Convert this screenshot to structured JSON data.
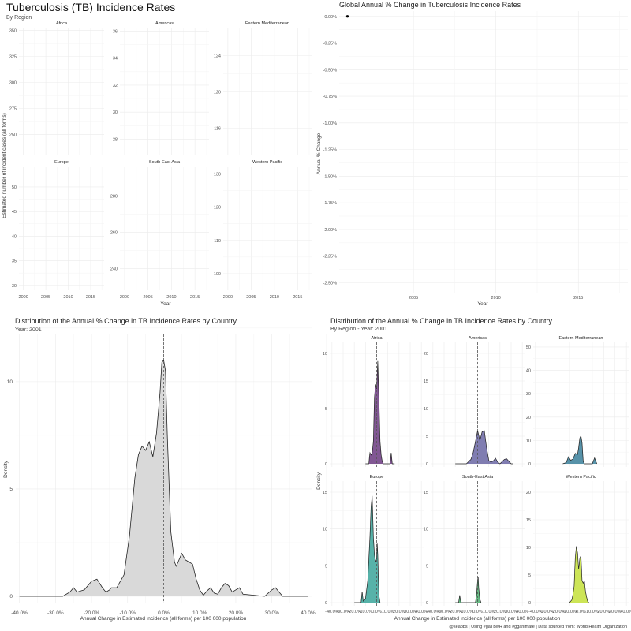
{
  "panels": {
    "top_left": {
      "title": "Tuberculosis (TB) Incidence Rates",
      "subtitle": "By Region",
      "ylabel": "Estimated number of incident cases (all forms)",
      "xlabel": "Year"
    },
    "top_right": {
      "title": "Global Annual % Change in Tuberculosis Incidence Rates",
      "ylabel": "Annual % Change",
      "xlabel": "Year"
    },
    "bottom_left": {
      "title": "Distribution of the Annual % Change in TB Incidence Rates by Country",
      "subtitle": "Year: 2001",
      "ylabel": "Density",
      "xlabel": "Annual Change in Estimated incidence (all forms) per 100 000 population"
    },
    "bottom_right": {
      "title": "Distribution of the Annual % Change in TB Incidence Rates by Country",
      "subtitle": "By Region - Year: 2001",
      "ylabel": "Density",
      "xlabel": "Annual Change in Estimated incidence (all forms) per 100 000 population",
      "caption": "@seabbs | Using #gaTBwR and #gganimate | Data sourced from: World Health Organization"
    }
  },
  "chart_data": [
    {
      "type": "scatter",
      "facets": [
        {
          "name": "Africa",
          "y_ticks": [
            250,
            275,
            300,
            325,
            350
          ],
          "ylim": [
            230,
            352
          ],
          "points": []
        },
        {
          "name": "Americas",
          "y_ticks": [
            28,
            30,
            32,
            34,
            36
          ],
          "ylim": [
            26.8,
            36.2
          ],
          "points": []
        },
        {
          "name": "Eastern Mediterranean",
          "y_ticks": [
            116,
            120,
            124
          ],
          "ylim": [
            113,
            127
          ],
          "points": []
        },
        {
          "name": "Europe",
          "y_ticks": [
            30,
            35,
            40,
            45,
            50
          ],
          "ylim": [
            29,
            54
          ],
          "points": []
        },
        {
          "name": "South-East Asia",
          "y_ticks": [
            240,
            260,
            280
          ],
          "ylim": [
            228,
            296
          ],
          "points": []
        },
        {
          "name": "Western Pacific",
          "y_ticks": [
            100,
            110,
            120,
            130
          ],
          "ylim": [
            95,
            132
          ],
          "points": []
        }
      ],
      "x_ticks": [
        2000,
        2005,
        2010,
        2015
      ],
      "xlim": [
        1999,
        2018
      ]
    },
    {
      "type": "scatter",
      "x": [
        2001
      ],
      "y": [
        0.0
      ],
      "x_ticks": [
        2005,
        2010,
        2015
      ],
      "xlim": [
        2000.5,
        2018
      ],
      "y_ticks": [
        0,
        -0.25,
        -0.5,
        -0.75,
        -1.0,
        -1.25,
        -1.5,
        -1.75,
        -2.0,
        -2.25,
        -2.5
      ],
      "y_tick_labels": [
        "0.00%",
        "-0.25%",
        "-0.50%",
        "-0.75%",
        "-1.00%",
        "-1.25%",
        "-1.50%",
        "-1.75%",
        "-2.00%",
        "-2.25%",
        "-2.50%"
      ],
      "ylim": [
        -2.6,
        0.05
      ]
    },
    {
      "type": "area",
      "fill": "#d9d9d9",
      "x_ticks": [
        -40,
        -30,
        -20,
        -10,
        0,
        10,
        20,
        30,
        40
      ],
      "x_tick_labels": [
        "-40.0%",
        "-30.0%",
        "-20.0%",
        "-10.0%",
        "0.0%",
        "10.0%",
        "20.0%",
        "30.0%",
        "40.0%"
      ],
      "xlim": [
        -41,
        41
      ],
      "y_ticks": [
        0,
        5,
        10
      ],
      "ylim": [
        0,
        12.2
      ],
      "x": [
        -40,
        -28,
        -26,
        -25,
        -24,
        -22,
        -20,
        -18.5,
        -17,
        -16,
        -15,
        -14.5,
        -13,
        -11,
        -9.5,
        -8,
        -7,
        -6,
        -5,
        -4,
        -3,
        -2,
        -1,
        -0.5,
        0,
        0.5,
        1,
        2,
        3,
        3.5,
        4,
        5,
        6,
        7,
        8,
        9,
        10,
        11,
        12,
        13,
        14,
        15,
        16,
        17,
        18,
        19,
        20,
        21,
        22,
        28,
        30,
        31,
        32,
        33,
        35,
        40
      ],
      "y": [
        0,
        0,
        0.2,
        0.4,
        0.2,
        0.3,
        0.7,
        0.8,
        0.4,
        0.2,
        0.3,
        0.4,
        0.4,
        1.0,
        2.8,
        5.5,
        6.6,
        7.0,
        6.8,
        7.2,
        6.5,
        7.6,
        9.5,
        10.9,
        11.0,
        10.5,
        7.5,
        3.0,
        1.6,
        1.4,
        1.6,
        2.0,
        1.7,
        1.6,
        1.5,
        0.8,
        0.3,
        0.05,
        0.25,
        0.4,
        0.15,
        0.1,
        0.4,
        0.6,
        0.5,
        0.2,
        0.3,
        0.4,
        0.1,
        0,
        0.3,
        0.4,
        0.2,
        0,
        0,
        0
      ]
    },
    {
      "type": "area",
      "x_ticks": [
        -40,
        -30,
        -20,
        -10,
        0,
        10,
        20,
        30,
        40
      ],
      "x_tick_labels": [
        "-40.0%",
        "-30.0%",
        "-20.0%",
        "-10.0%",
        "0.0%",
        "10.0%",
        "20.0%",
        "30.0%",
        "40.0%"
      ],
      "xlim": [
        -42,
        42
      ],
      "facets": [
        {
          "name": "Africa",
          "fill": "#6b3a80",
          "y_ticks": [
            0,
            5,
            10
          ],
          "ylim": [
            0,
            11
          ],
          "x": [
            -10,
            -7,
            -6.5,
            -6,
            -5,
            -4,
            -3,
            -2,
            -1,
            0,
            1,
            2,
            3,
            4,
            5,
            6,
            7,
            8,
            9,
            12,
            13,
            14,
            16
          ],
          "y": [
            0,
            0,
            0.6,
            1.0,
            0.8,
            1.0,
            2.0,
            6.0,
            7.2,
            6.8,
            9.3,
            6.0,
            2.0,
            0.8,
            0.2,
            0,
            0,
            0,
            0,
            0,
            1.0,
            0,
            0
          ]
        },
        {
          "name": "Americas",
          "fill": "#6a66a3",
          "y_ticks": [
            0,
            5,
            10,
            15,
            20
          ],
          "ylim": [
            0,
            22
          ],
          "x": [
            -20,
            -10,
            -6,
            -4,
            -2,
            0,
            1,
            2,
            4,
            6,
            8,
            10,
            12,
            14,
            16,
            18,
            20,
            24,
            26,
            30,
            32
          ],
          "y": [
            0,
            0,
            0.8,
            2.0,
            4.0,
            6.0,
            5.2,
            4.2,
            5.8,
            6.0,
            3.0,
            0.6,
            0.3,
            0.5,
            1.0,
            0.3,
            0,
            0.8,
            0.9,
            0,
            0
          ]
        },
        {
          "name": "Eastern Mediterranean",
          "fill": "#3a7f9a",
          "y_ticks": [
            0,
            10,
            20,
            30,
            40,
            50
          ],
          "ylim": [
            0,
            52
          ],
          "x": [
            -16,
            -13,
            -11,
            -9,
            -7,
            -5,
            -3,
            -2,
            -1,
            0,
            1,
            2,
            3,
            4,
            6,
            8,
            10,
            12,
            14
          ],
          "y": [
            0,
            0.5,
            3.0,
            1.5,
            2.0,
            4.5,
            4.0,
            7.0,
            11.0,
            12.0,
            9.0,
            1.0,
            0,
            0,
            0,
            0,
            0,
            2.5,
            0
          ]
        },
        {
          "name": "Europe",
          "fill": "#3aa59a",
          "y_ticks": [
            0,
            5,
            10,
            15
          ],
          "ylim": [
            0,
            16.5
          ],
          "x": [
            -20,
            -14,
            -13,
            -12,
            -10,
            -8,
            -6,
            -5,
            -4,
            -3.5,
            -3,
            -2,
            -1,
            0,
            0.5,
            1,
            2,
            3
          ],
          "y": [
            0,
            0,
            1.5,
            0.2,
            0.5,
            3.0,
            9.0,
            13.0,
            14.5,
            12.0,
            9.0,
            6.5,
            5.5,
            6.0,
            8.0,
            6.5,
            1.0,
            0
          ]
        },
        {
          "name": "South-East Asia",
          "fill": "#4caf6e",
          "y_ticks": [
            0,
            5,
            10,
            15
          ],
          "ylim": [
            0,
            16.5
          ],
          "x": [
            -20,
            -17,
            -16,
            -15,
            -10,
            -2,
            -1,
            0,
            0.5,
            1,
            2,
            3
          ],
          "y": [
            0,
            0,
            1.0,
            0,
            0,
            0,
            1.0,
            3.0,
            3.5,
            2.0,
            0.5,
            0
          ]
        },
        {
          "name": "Western Pacific",
          "fill": "#c4e03a",
          "y_ticks": [
            0,
            5,
            10,
            15,
            20
          ],
          "ylim": [
            0,
            22
          ],
          "x": [
            -10,
            -8,
            -7,
            -6,
            -5,
            -4,
            -3,
            -2,
            -1,
            0,
            1,
            2,
            3,
            4,
            5,
            6,
            7
          ],
          "y": [
            0,
            0.5,
            1.5,
            3.0,
            8.0,
            10.2,
            9.0,
            6.0,
            8.0,
            8.5,
            4.0,
            3.5,
            4.0,
            2.0,
            1.0,
            0.2,
            0
          ]
        }
      ]
    }
  ]
}
